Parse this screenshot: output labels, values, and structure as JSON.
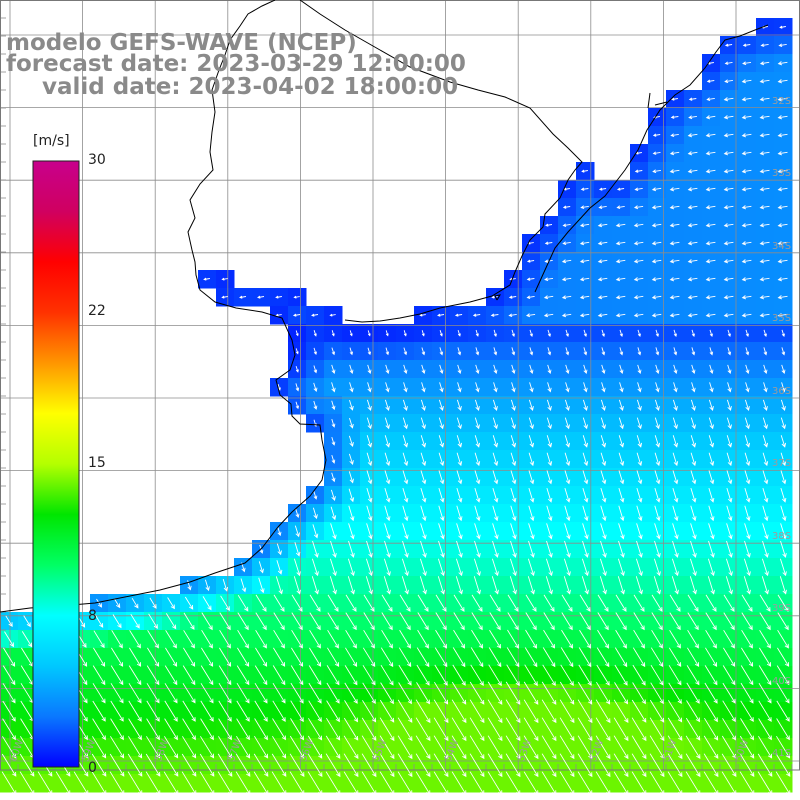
{
  "title": {
    "line1": "modelo GEFS-WAVE (NCEP)",
    "line2": "forecast date: 2023-03-29 12:00:00",
    "line3": "valid date: 2023-04-02 18:00:00"
  },
  "colorbar": {
    "units": "[m/s]",
    "ticks": [
      "30",
      "22",
      "15",
      "8",
      "0"
    ],
    "range": [
      0,
      30
    ],
    "colors": [
      "#0000ff",
      "#0a78ff",
      "#00c8ff",
      "#00ffff",
      "#00ff64",
      "#00e600",
      "#b4ff00",
      "#ffff00",
      "#ff9600",
      "#ff3200",
      "#ff0000",
      "#d00060",
      "#c8008c"
    ]
  },
  "gridlines": {
    "lat": [
      "32S",
      "33S",
      "34S",
      "35S",
      "36S",
      "37S",
      "38S",
      "39S",
      "40S",
      "41S"
    ],
    "lon": [
      "60W",
      "59W",
      "58W",
      "57W",
      "56W",
      "55W",
      "54W",
      "53W",
      "52W",
      "51W",
      "50W"
    ]
  },
  "chart_data": {
    "type": "heatmap",
    "variable": "wind speed",
    "units": "m/s",
    "color_range": [
      0,
      30
    ],
    "extent": {
      "lon": [
        -60.3,
        -50.0
      ],
      "lat": [
        -41.6,
        -30.3
      ]
    },
    "grid": "grid",
    "land_color": "#ffffff",
    "speed_regions": [
      {
        "area": "Rio de la Plata estuary",
        "speed_ms": 1
      },
      {
        "area": "Uruguay / southern Brazil coast",
        "speed_ms": 3
      },
      {
        "area": "offshore 35S-38S",
        "speed_ms": 6
      },
      {
        "area": "open ocean 38S-40S",
        "speed_ms": 9
      },
      {
        "area": "south, near 41S 54W",
        "speed_ms": 13
      }
    ],
    "wind_direction": "arrows point mostly south to southeast, stronger arrows in the south"
  }
}
